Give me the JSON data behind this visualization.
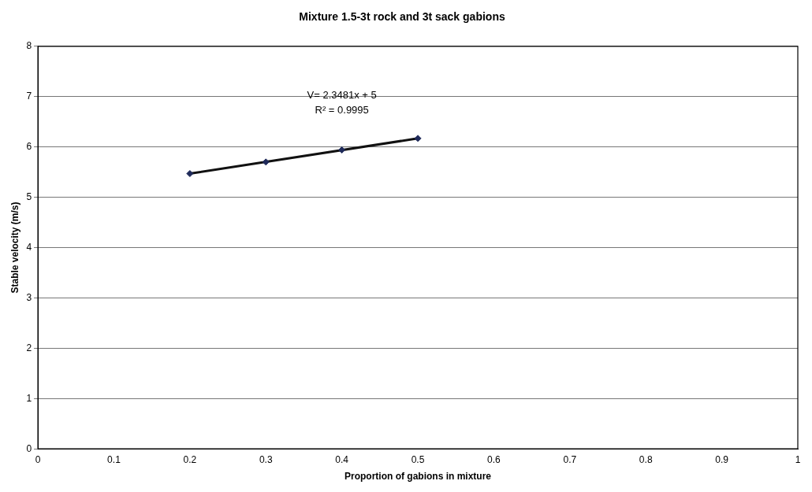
{
  "chart_data": {
    "type": "scatter",
    "title": "Mixture 1.5-3t rock and 3t sack gabions",
    "xlabel": "Proportion of gabions in mixture",
    "ylabel": "Stable velocity (m/s)",
    "x": [
      0.2,
      0.3,
      0.4,
      0.5
    ],
    "series": [
      {
        "type": "scatter",
        "color": "#1f2a5a",
        "marker": "diamond",
        "values": [
          5.47,
          5.7,
          5.94,
          6.17
        ]
      },
      {
        "type": "line",
        "color": "#111111",
        "marker": "none",
        "x": [
          0.2,
          0.5
        ],
        "values": [
          5.47,
          6.17
        ]
      }
    ],
    "annotations": [
      "V= 2.3481x + 5",
      "R² = 0.9995"
    ],
    "xlim": [
      0,
      1
    ],
    "xticks": [
      0,
      0.1,
      0.2,
      0.3,
      0.4,
      0.5,
      0.6,
      0.7,
      0.8,
      0.9,
      1
    ],
    "ylim": [
      0,
      8
    ],
    "yticks": [
      0,
      1,
      2,
      3,
      4,
      5,
      6,
      7,
      8
    ],
    "grid": "y",
    "legend": false
  }
}
